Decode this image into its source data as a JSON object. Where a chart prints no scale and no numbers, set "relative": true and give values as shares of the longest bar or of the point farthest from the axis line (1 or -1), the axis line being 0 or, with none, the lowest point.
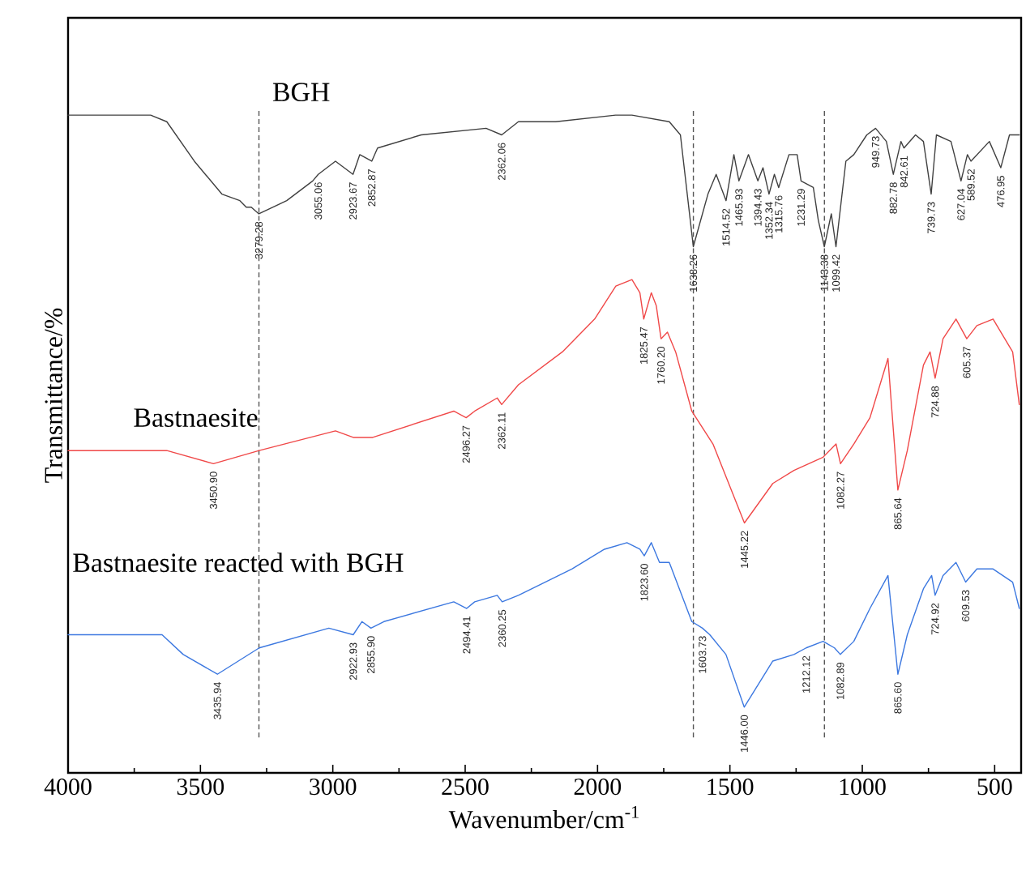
{
  "chart_data": {
    "type": "line",
    "relative": true,
    "xlabel": "Wavenumber/cm$^{-1}$",
    "ylabel": "Transmittance/%",
    "xlim": [
      4000,
      400
    ],
    "xticks": [
      4000,
      3500,
      3000,
      2500,
      2000,
      1500,
      1000,
      500
    ],
    "series": [
      {
        "name": "BGH",
        "color": "#404040",
        "x": [
          4000,
          3890,
          3688,
          3627,
          3523,
          3419,
          3351,
          3327,
          3308,
          3279.28,
          3174,
          3076,
          3055.06,
          2990,
          2923.67,
          2898,
          2852.87,
          2831,
          2666,
          2421,
          2362.06,
          2299,
          2158,
          1932,
          1870,
          1729,
          1687,
          1638.26,
          1583,
          1552,
          1514.52,
          1485,
          1465.93,
          1430,
          1394.43,
          1375,
          1352.34,
          1332,
          1315.76,
          1277,
          1246,
          1231.29,
          1185,
          1166,
          1143.38,
          1117,
          1099.42,
          1062,
          1032,
          983,
          949.73,
          909,
          882.78,
          854,
          842.61,
          799,
          769,
          739.73,
          720,
          665,
          627.04,
          603,
          589.52,
          520,
          476.95,
          444,
          407
        ],
        "values": [
          1.0,
          1.0,
          1.0,
          0.99,
          0.93,
          0.88,
          0.87,
          0.86,
          0.86,
          0.85,
          0.87,
          0.9,
          0.91,
          0.93,
          0.91,
          0.94,
          0.93,
          0.95,
          0.97,
          0.98,
          0.97,
          0.99,
          0.99,
          1.0,
          1.0,
          0.99,
          0.97,
          0.8,
          0.88,
          0.91,
          0.87,
          0.94,
          0.9,
          0.94,
          0.9,
          0.92,
          0.88,
          0.91,
          0.89,
          0.94,
          0.94,
          0.9,
          0.89,
          0.84,
          0.8,
          0.85,
          0.8,
          0.93,
          0.94,
          0.97,
          0.98,
          0.96,
          0.91,
          0.96,
          0.95,
          0.97,
          0.96,
          0.88,
          0.97,
          0.96,
          0.9,
          0.94,
          0.93,
          0.96,
          0.92,
          0.97,
          0.97
        ]
      },
      {
        "name": "Bastnaesite",
        "color": "#f04848",
        "x": [
          4000,
          3890,
          3688,
          3627,
          3450.9,
          3278,
          2990,
          2923,
          2849,
          2543,
          2496.27,
          2464,
          2379,
          2362.11,
          2299,
          2133,
          2011,
          1931,
          1870,
          1840,
          1825.47,
          1797,
          1778,
          1760.2,
          1736,
          1705,
          1644,
          1564,
          1445.22,
          1338,
          1258,
          1148,
          1099,
          1082.27,
          1032,
          971,
          903,
          865.64,
          830,
          769,
          744,
          724.88,
          695,
          646,
          605.37,
          567,
          506,
          432,
          407
        ],
        "values": [
          0.49,
          0.49,
          0.49,
          0.49,
          0.47,
          0.49,
          0.52,
          0.51,
          0.51,
          0.55,
          0.54,
          0.55,
          0.57,
          0.56,
          0.59,
          0.64,
          0.69,
          0.74,
          0.75,
          0.73,
          0.69,
          0.73,
          0.71,
          0.66,
          0.67,
          0.64,
          0.55,
          0.5,
          0.38,
          0.44,
          0.46,
          0.48,
          0.5,
          0.47,
          0.5,
          0.54,
          0.63,
          0.43,
          0.49,
          0.62,
          0.64,
          0.6,
          0.66,
          0.69,
          0.66,
          0.68,
          0.69,
          0.64,
          0.56
        ]
      },
      {
        "name": "Bastnaesite reacted with BGH",
        "color": "#3c78e0",
        "x": [
          4000,
          3890,
          3749,
          3645,
          3565,
          3435.94,
          3278,
          3015,
          2922.93,
          2890,
          2855.9,
          2807,
          2543,
          2494.41,
          2464,
          2379,
          2360.25,
          2299,
          2097,
          1974,
          1889,
          1840,
          1823.6,
          1797,
          1766,
          1729,
          1644,
          1603.73,
          1576,
          1515,
          1446.0,
          1338,
          1258,
          1212.12,
          1148,
          1105,
          1082.89,
          1032,
          971,
          903,
          865.6,
          830,
          769,
          738,
          724.92,
          695,
          646,
          609.53,
          567,
          506,
          432,
          407
        ],
        "values": [
          0.21,
          0.21,
          0.21,
          0.21,
          0.18,
          0.15,
          0.19,
          0.22,
          0.21,
          0.23,
          0.22,
          0.23,
          0.26,
          0.25,
          0.26,
          0.27,
          0.26,
          0.27,
          0.31,
          0.34,
          0.35,
          0.34,
          0.33,
          0.35,
          0.32,
          0.32,
          0.23,
          0.22,
          0.21,
          0.18,
          0.1,
          0.17,
          0.18,
          0.19,
          0.2,
          0.19,
          0.18,
          0.2,
          0.25,
          0.3,
          0.15,
          0.21,
          0.28,
          0.3,
          0.27,
          0.3,
          0.32,
          0.29,
          0.31,
          0.31,
          0.29,
          0.25
        ]
      }
    ],
    "ref_lines": [
      {
        "axis": "x",
        "value": 3279,
        "color": "#555555",
        "line_style": "dashed"
      },
      {
        "axis": "x",
        "value": 1638,
        "color": "#555555",
        "line_style": "dashed"
      },
      {
        "axis": "x",
        "value": 1143,
        "color": "#555555",
        "line_style": "dashed"
      }
    ],
    "annotations": [
      {
        "text": "3279.28",
        "x": 3279.28,
        "y": 0.85
      },
      {
        "text": "3055.06",
        "x": 3055.06,
        "y": 0.91
      },
      {
        "text": "2923.67",
        "x": 2923.67,
        "y": 0.91
      },
      {
        "text": "2852.87",
        "x": 2852.87,
        "y": 0.93
      },
      {
        "text": "2362.06",
        "x": 2362.06,
        "y": 0.97
      },
      {
        "text": "1638.26",
        "x": 1638.26,
        "y": 0.8
      },
      {
        "text": "1514.52",
        "x": 1514.52,
        "y": 0.87
      },
      {
        "text": "1465.93",
        "x": 1465.93,
        "y": 0.9
      },
      {
        "text": "1394.43",
        "x": 1394.43,
        "y": 0.9
      },
      {
        "text": "1352.34",
        "x": 1352.34,
        "y": 0.88
      },
      {
        "text": "1315.76",
        "x": 1315.76,
        "y": 0.89
      },
      {
        "text": "1231.29",
        "x": 1231.29,
        "y": 0.9
      },
      {
        "text": "1143.38",
        "x": 1143.38,
        "y": 0.8
      },
      {
        "text": "1099.42",
        "x": 1099.42,
        "y": 0.8
      },
      {
        "text": "949.73",
        "x": 949.73,
        "y": 0.98
      },
      {
        "text": "882.78",
        "x": 882.78,
        "y": 0.91
      },
      {
        "text": "842.61",
        "x": 842.61,
        "y": 0.95
      },
      {
        "text": "739.73",
        "x": 739.73,
        "y": 0.88
      },
      {
        "text": "627.04",
        "x": 627.04,
        "y": 0.9
      },
      {
        "text": "589.52",
        "x": 589.52,
        "y": 0.93
      },
      {
        "text": "476.95",
        "x": 476.95,
        "y": 0.92
      },
      {
        "text": "3450.90",
        "x": 3450.9,
        "y": 0.47
      },
      {
        "text": "2496.27",
        "x": 2496.27,
        "y": 0.54
      },
      {
        "text": "2362.11",
        "x": 2362.11,
        "y": 0.56
      },
      {
        "text": "1825.47",
        "x": 1825.47,
        "y": 0.69
      },
      {
        "text": "1760.20",
        "x": 1760.2,
        "y": 0.66
      },
      {
        "text": "1445.22",
        "x": 1445.22,
        "y": 0.38
      },
      {
        "text": "1082.27",
        "x": 1082.27,
        "y": 0.47
      },
      {
        "text": "865.64",
        "x": 865.64,
        "y": 0.43
      },
      {
        "text": "724.88",
        "x": 724.88,
        "y": 0.6
      },
      {
        "text": "605.37",
        "x": 605.37,
        "y": 0.66
      },
      {
        "text": "3435.94",
        "x": 3435.94,
        "y": 0.15
      },
      {
        "text": "2922.93",
        "x": 2922.93,
        "y": 0.21
      },
      {
        "text": "2855.90",
        "x": 2855.9,
        "y": 0.22
      },
      {
        "text": "2494.41",
        "x": 2494.41,
        "y": 0.25
      },
      {
        "text": "2360.25",
        "x": 2360.25,
        "y": 0.26
      },
      {
        "text": "1823.60",
        "x": 1823.6,
        "y": 0.33
      },
      {
        "text": "1603.73",
        "x": 1603.73,
        "y": 0.22
      },
      {
        "text": "1446.00",
        "x": 1446.0,
        "y": 0.1
      },
      {
        "text": "1212.12",
        "x": 1212.12,
        "y": 0.19
      },
      {
        "text": "1082.89",
        "x": 1082.89,
        "y": 0.18
      },
      {
        "text": "865.60",
        "x": 865.6,
        "y": 0.15
      },
      {
        "text": "724.92",
        "x": 724.92,
        "y": 0.27
      },
      {
        "text": "609.53",
        "x": 609.53,
        "y": 0.29
      }
    ]
  }
}
